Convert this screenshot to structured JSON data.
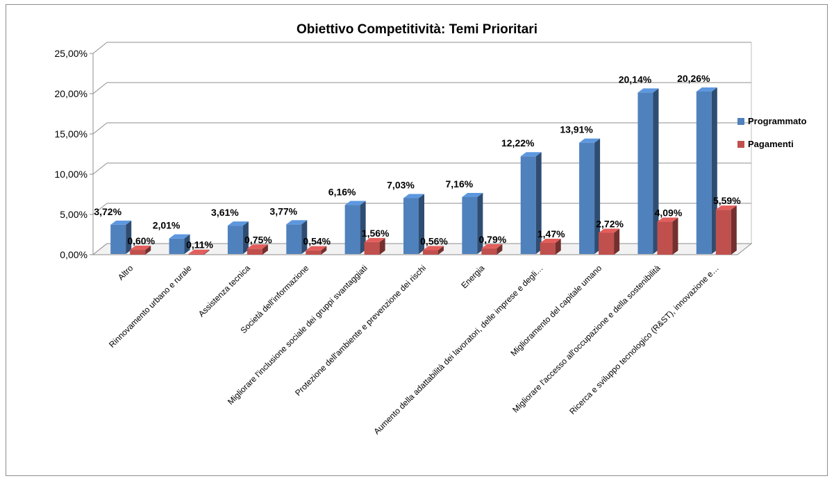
{
  "chart_data": {
    "type": "bar",
    "title": "Obiettivo Competitività: Temi Prioritari",
    "categories": [
      "Altro",
      "Rinnovamento urbano e rurale",
      "Assistenza tecnica",
      "Società dell'informazione",
      "Migliorare l'inclusione sociale dei gruppi svantaggiati",
      "Protezione dell'ambiente e prevenzione dei rischi",
      "Energia",
      "Aumento della adattabilità dei lavoratori, delle imprese e degli…",
      "Miglioramento del capitale umano",
      "Migliorare l'accesso all'occupazione e della sostenibilità",
      "Ricerca e sviluppo tecnologico (R&ST), innovazione e…"
    ],
    "series": [
      {
        "name": "Programmato",
        "color": "#4f81bd",
        "values": [
          3.72,
          2.01,
          3.61,
          3.77,
          6.16,
          7.03,
          7.16,
          12.22,
          13.91,
          20.14,
          20.26
        ],
        "labels": [
          "3,72%",
          "2,01%",
          "3,61%",
          "3,77%",
          "6,16%",
          "7,03%",
          "7,16%",
          "12,22%",
          "13,91%",
          "20,14%",
          "20,26%"
        ]
      },
      {
        "name": "Pagamenti",
        "color": "#c0504d",
        "values": [
          0.6,
          0.11,
          0.75,
          0.54,
          1.56,
          0.56,
          0.79,
          1.47,
          2.72,
          4.09,
          5.59
        ],
        "labels": [
          "0,60%",
          "0,11%",
          "0,75%",
          "0,54%",
          "1,56%",
          "0,56%",
          "0,79%",
          "1,47%",
          "2,72%",
          "4,09%",
          "5,59%"
        ]
      }
    ],
    "ylim": [
      0,
      25
    ],
    "yticks": [
      0,
      5,
      10,
      15,
      20,
      25
    ],
    "ytick_labels": [
      "0,00%",
      "5,00%",
      "10,00%",
      "15,00%",
      "20,00%",
      "25,00%"
    ],
    "grid": true,
    "legend": "right",
    "xlabel": "",
    "ylabel": ""
  }
}
